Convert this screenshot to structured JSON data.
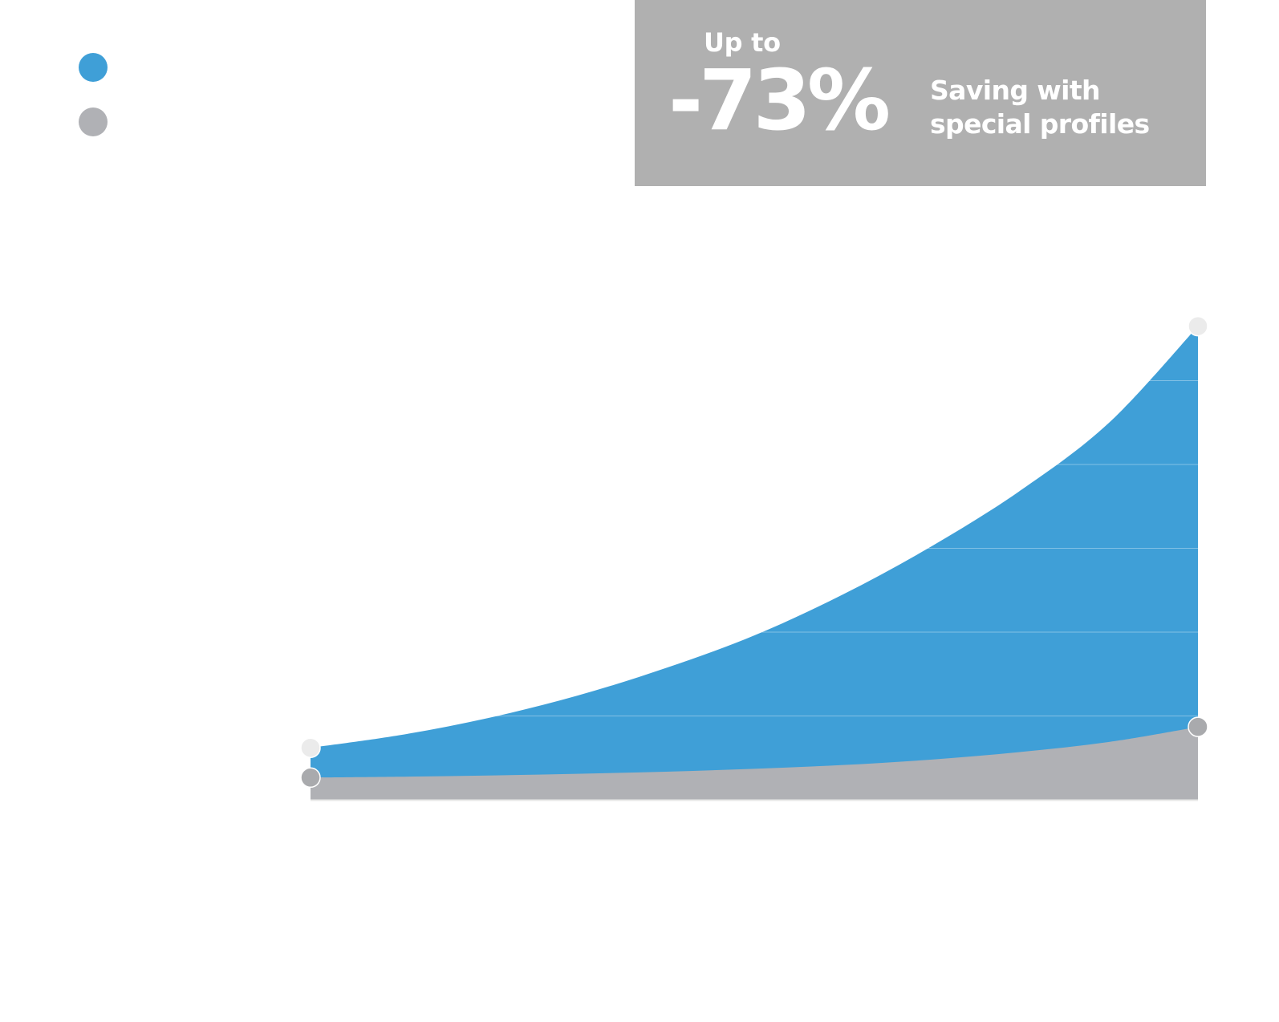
{
  "legend": [
    {
      "color": "#3f9fd7",
      "icon": "legend-dot-blue"
    },
    {
      "color": "#b0b1b5",
      "icon": "legend-dot-gray"
    }
  ],
  "callout": {
    "prefix": "Up to",
    "value": "-73%",
    "line1": "Saving with",
    "line2": "special profiles",
    "background": "#b0b0b0"
  },
  "chart_data": {
    "type": "area",
    "title": "",
    "xlabel": "",
    "ylabel": "",
    "grid": true,
    "legend_position": "top-left",
    "x": [
      0,
      0.1,
      0.2,
      0.3,
      0.4,
      0.5,
      0.6,
      0.7,
      0.8,
      0.9,
      1.0
    ],
    "xlim": [
      0,
      1
    ],
    "ylim": [
      0,
      120
    ],
    "series": [
      {
        "color": "#3f9fd7",
        "values": [
          12.4,
          15.4,
          19.5,
          24.8,
          31.4,
          39.2,
          49.0,
          60.5,
          73.8,
          90.0,
          113.0
        ]
      },
      {
        "color": "#b0b1b5",
        "values": [
          5.3,
          5.5,
          5.8,
          6.2,
          6.7,
          7.4,
          8.3,
          9.6,
          11.4,
          13.8,
          17.4
        ]
      }
    ],
    "markers": [
      {
        "series": 0,
        "index": 0,
        "color": "#ebebeb"
      },
      {
        "series": 0,
        "index": 10,
        "color": "#ebebeb"
      },
      {
        "series": 1,
        "index": 0,
        "color": "#a9aaad"
      },
      {
        "series": 1,
        "index": 10,
        "color": "#a9aaad"
      }
    ]
  }
}
